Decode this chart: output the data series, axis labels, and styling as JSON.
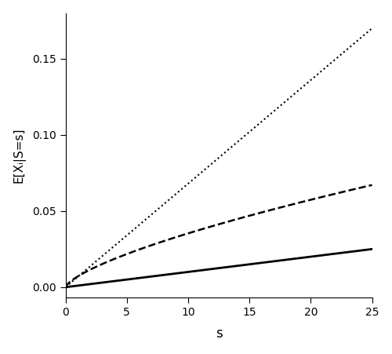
{
  "s_max": 25,
  "s_points": 300,
  "xlabel": "s",
  "ylabel": "E[Xᵢ|S=s]",
  "xlim": [
    0,
    25
  ],
  "ylim": [
    -0.007,
    0.18
  ],
  "yticks": [
    0.0,
    0.05,
    0.1,
    0.15
  ],
  "xticks": [
    0,
    5,
    10,
    15,
    20,
    25
  ],
  "background_color": "#ffffff",
  "line_color": "#000000",
  "linewidth_solid": 2.0,
  "linewidth_dashed": 1.8,
  "linewidth_dotted": 1.5,
  "figsize": [
    5.0,
    4.51
  ],
  "dpi": 100,
  "g1_scale": 0.001,
  "g1_power": 1.0,
  "g2_scale": 0.00705,
  "g2_power": 0.7,
  "g3_scale": 0.0068,
  "g3_power": 1.0
}
